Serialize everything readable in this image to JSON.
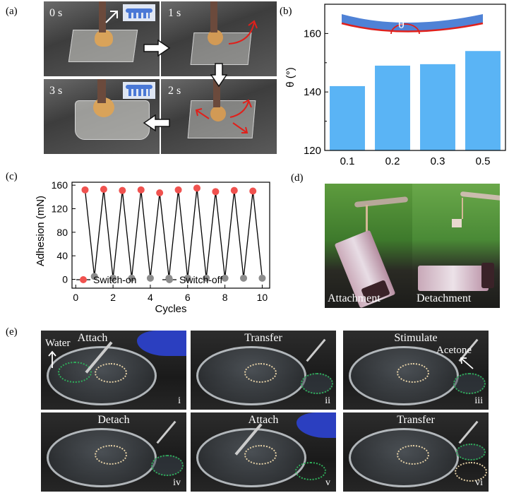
{
  "panels": {
    "a": {
      "label": "(a)",
      "times": [
        "0 s",
        "1 s",
        "2 s",
        "3 s"
      ]
    },
    "b": {
      "label": "(b)",
      "theta_symbol": "θ"
    },
    "c": {
      "label": "(c)"
    },
    "d": {
      "label": "(d)",
      "left_caption": "Attachment",
      "right_caption": "Detachment"
    },
    "e": {
      "label": "(e)",
      "water_label": "Water",
      "acetone_label": "Acetone",
      "steps": [
        {
          "title": "Attach",
          "roman": "i"
        },
        {
          "title": "Transfer",
          "roman": "ii"
        },
        {
          "title": "Stimulate",
          "roman": "iii"
        },
        {
          "title": "Detach",
          "roman": "iv"
        },
        {
          "title": "Attach",
          "roman": "v"
        },
        {
          "title": "Transfer",
          "roman": "vi"
        }
      ]
    }
  },
  "colors": {
    "bar": "#5ab4f5",
    "switch_on": "#f0524f",
    "switch_off": "#8c8c8c",
    "highlight_green": "#2fae5a",
    "arrow_red": "#e0201b"
  },
  "chart_data": [
    {
      "type": "bar",
      "categories": [
        "0.1",
        "0.2",
        "0.3",
        "0.5"
      ],
      "values": [
        142,
        149,
        149.5,
        154
      ],
      "ylabel": "θ (°)",
      "xlabel": "",
      "ylim": [
        120,
        170
      ],
      "yticks": [
        "120",
        "140",
        "160"
      ]
    },
    {
      "type": "line",
      "xlabel": "Cycles",
      "ylabel": "Adhesion (mN)",
      "xlim": [
        -0.2,
        10.4
      ],
      "ylim": [
        -15,
        165
      ],
      "xticks": [
        "0",
        "2",
        "4",
        "6",
        "8",
        "10"
      ],
      "yticks": [
        "0",
        "40",
        "80",
        "120",
        "160"
      ],
      "series": [
        {
          "name": "Switch-on",
          "x": [
            0.5,
            1.5,
            2.5,
            3.5,
            4.5,
            5.5,
            6.5,
            7.5,
            8.5,
            9.5
          ],
          "y": [
            152,
            153,
            151,
            152,
            147,
            152,
            155,
            149,
            151,
            150
          ]
        },
        {
          "name": "Switch-off",
          "x": [
            1,
            2,
            3,
            4,
            5,
            6,
            7,
            8,
            9,
            10
          ],
          "y": [
            5,
            2,
            2,
            2,
            2,
            2,
            2,
            2,
            2,
            2
          ]
        }
      ]
    }
  ]
}
